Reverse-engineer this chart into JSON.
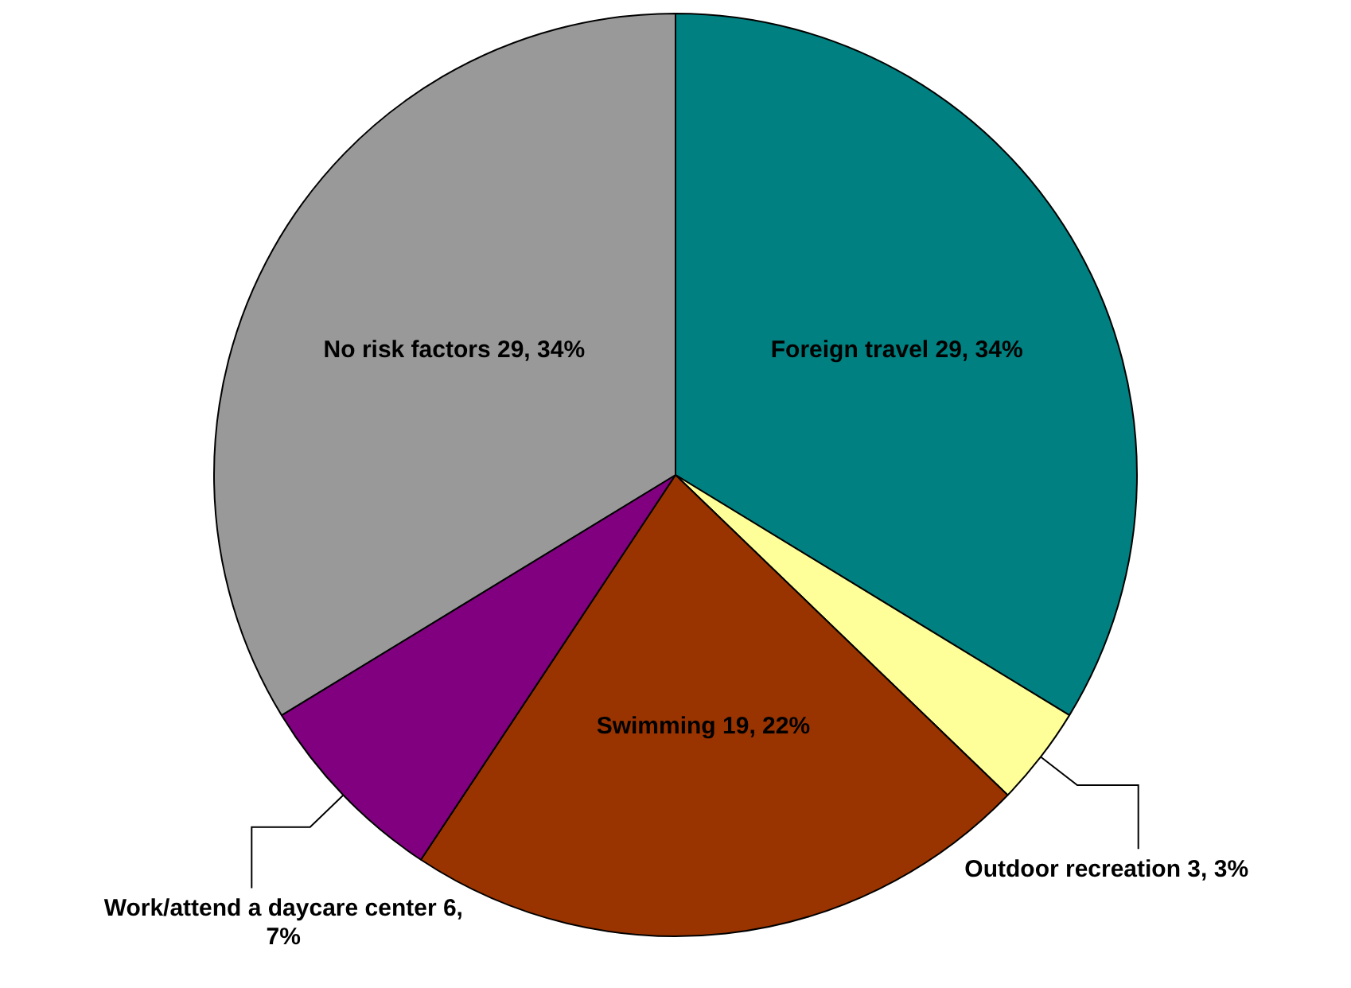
{
  "chart_data": {
    "type": "pie",
    "categories": [
      "Foreign travel",
      "Outdoor recreation",
      "Swimming",
      "Work/attend a daycare center",
      "No risk factors"
    ],
    "values": [
      29,
      3,
      19,
      6,
      29
    ],
    "value_labels": [
      "29, 34%",
      "3, 3%",
      "19, 22%",
      "6, 7%",
      "29, 34%"
    ],
    "colors": [
      "#008080",
      "#ffff99",
      "#993300",
      "#800080",
      "#999999"
    ]
  }
}
